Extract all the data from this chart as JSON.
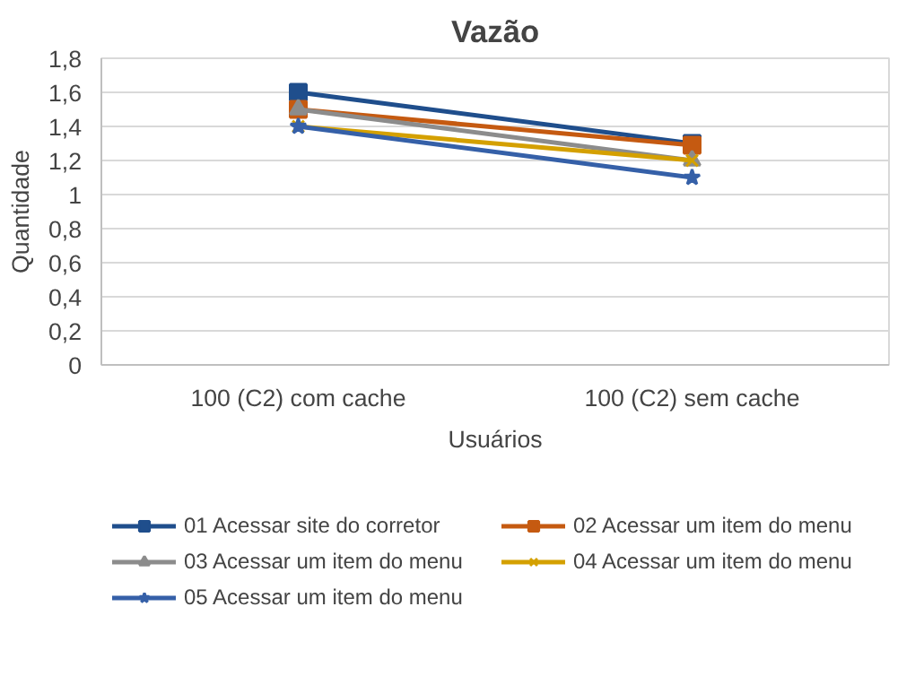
{
  "chart_data": {
    "type": "line",
    "title": "Vazão",
    "xlabel": "Usuários",
    "ylabel": "Quantidade",
    "categories": [
      "100 (C2) com cache",
      "100 (C2) sem cache"
    ],
    "series": [
      {
        "name": "01 Acessar site do corretor",
        "color": "#1f4e8c",
        "values": [
          1.6,
          1.3
        ],
        "marker": "square"
      },
      {
        "name": "02 Acessar um item do menu",
        "color": "#c55a11",
        "values": [
          1.5,
          1.29
        ],
        "marker": "square"
      },
      {
        "name": "03 Acessar um item do menu",
        "color": "#8c8c8c",
        "values": [
          1.5,
          1.2
        ],
        "marker": "triangle"
      },
      {
        "name": "04 Acessar um item do menu",
        "color": "#d4a000",
        "values": [
          1.4,
          1.2
        ],
        "marker": "cross"
      },
      {
        "name": "05 Acessar um item do menu",
        "color": "#3560a8",
        "values": [
          1.4,
          1.1
        ],
        "marker": "star"
      }
    ],
    "ylim": [
      0,
      1.8
    ],
    "yticks": [
      0,
      {
        "value": 0.2,
        "label": "0,2"
      },
      {
        "value": 0.4,
        "label": "0,4"
      },
      {
        "value": 0.6,
        "label": "0,6"
      },
      {
        "value": 0.8,
        "label": "0,8"
      },
      1,
      {
        "value": 1.2,
        "label": "1,2"
      },
      {
        "value": 1.4,
        "label": "1,4"
      },
      {
        "value": 1.6,
        "label": "1,6"
      },
      {
        "value": 1.8,
        "label": "1,8"
      }
    ],
    "grid": "y",
    "legend": "bottom",
    "line_style": "solid"
  }
}
